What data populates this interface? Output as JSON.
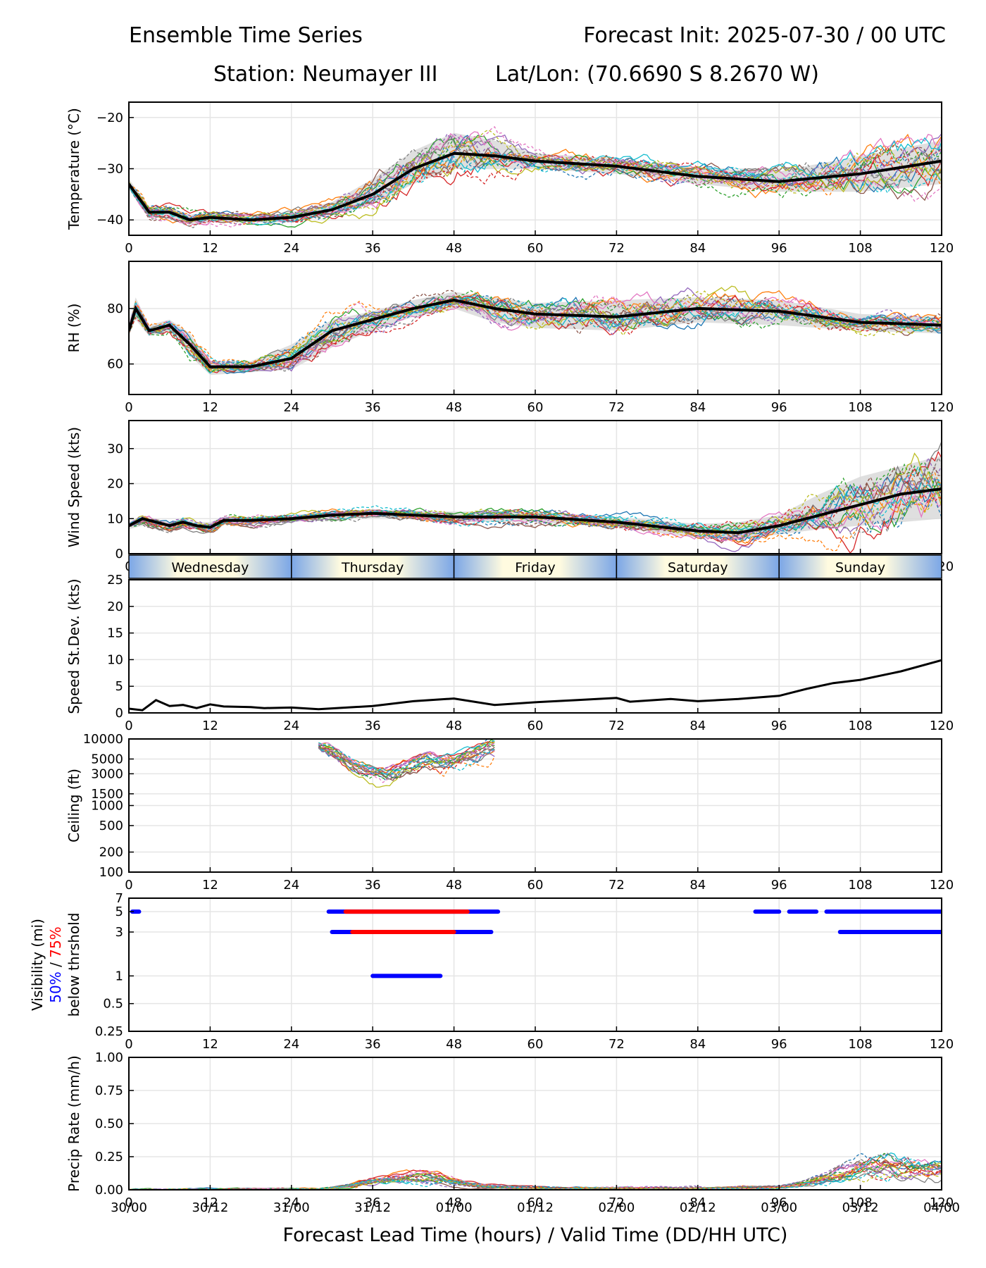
{
  "header": {
    "title": "Ensemble Time Series",
    "init": "Forecast Init: 2025-07-30 / 00 UTC",
    "station": "Station: Neumayer III",
    "latlon": "Lat/Lon: (70.6690 S 8.2670 W)"
  },
  "colors": {
    "accent_mean": "#000000",
    "spread_fill": "#d9d9d9",
    "prob50": "#0000ff",
    "prob75": "#ff0000",
    "grid": "#e5e5e5",
    "day_shade": "#fffbe0",
    "night_shade": "#7ba6e6",
    "members": [
      "#1f77b4",
      "#ff7f0e",
      "#2ca02c",
      "#d62728",
      "#9467bd",
      "#8c564b",
      "#e377c2",
      "#7f7f7f",
      "#bcbd22",
      "#17becf"
    ]
  },
  "x_axis": {
    "lead_ticks": [
      0,
      12,
      24,
      36,
      48,
      60,
      72,
      84,
      96,
      108,
      120
    ],
    "valid_ticks": [
      "30/00",
      "30/12",
      "31/00",
      "31/12",
      "01/00",
      "01/12",
      "02/00",
      "02/12",
      "03/00",
      "03/12",
      "04/00"
    ],
    "xlabel": "Forecast Lead Time (hours) / Valid Time (DD/HH UTC)"
  },
  "day_strip": [
    "Wednesday",
    "Thursday",
    "Friday",
    "Saturday",
    "Sunday"
  ],
  "chart_data": [
    {
      "type": "line",
      "name": "temperature",
      "ylabel": "Temperature (°C)",
      "ylim": [
        -43,
        -17
      ],
      "yticks": [
        -40,
        -30,
        -20
      ],
      "ytick_labels": [
        "−40",
        "−30",
        "−20"
      ],
      "x": [
        0,
        3,
        6,
        9,
        12,
        18,
        24,
        30,
        36,
        42,
        48,
        54,
        60,
        72,
        84,
        96,
        108,
        120
      ],
      "mean": [
        -33,
        -38.5,
        -38.5,
        -40,
        -39.5,
        -40,
        -39.5,
        -38,
        -35,
        -30,
        -27,
        -27.5,
        -28.5,
        -29.5,
        -31.5,
        -32.5,
        -31,
        -28.5
      ],
      "spread_lo": [
        -34,
        -39.5,
        -39.5,
        -41,
        -40.5,
        -40.5,
        -40.5,
        -39,
        -37,
        -33,
        -30,
        -30,
        -30,
        -31,
        -33,
        -34.5,
        -34.5,
        -33
      ],
      "spread_hi": [
        -32,
        -37.5,
        -37.5,
        -39,
        -38.5,
        -39.5,
        -38.5,
        -36.5,
        -32,
        -26.5,
        -23,
        -24.5,
        -27,
        -28,
        -30,
        -30.5,
        -27.5,
        -24.5
      ],
      "grid": true
    },
    {
      "type": "line",
      "name": "rh",
      "ylabel": "RH (%)",
      "ylim": [
        49,
        97
      ],
      "yticks": [
        60,
        80
      ],
      "ytick_labels": [
        "60",
        "80"
      ],
      "x": [
        0,
        1,
        3,
        6,
        9,
        12,
        18,
        24,
        30,
        36,
        42,
        48,
        54,
        60,
        72,
        84,
        96,
        108,
        120
      ],
      "mean": [
        72,
        80,
        72,
        74,
        67,
        59,
        59,
        62,
        72,
        76,
        80,
        83,
        80,
        78,
        77,
        80,
        79,
        75,
        74
      ],
      "spread_lo": [
        70,
        76,
        70,
        72,
        63,
        56,
        57,
        58,
        66,
        72,
        77,
        80,
        75,
        73,
        72,
        75,
        74,
        72,
        71
      ],
      "spread_hi": [
        75,
        84,
        74,
        76,
        71,
        61,
        61,
        67,
        76,
        79,
        83,
        86,
        84,
        82,
        83,
        84,
        83,
        78,
        77
      ],
      "grid": true
    },
    {
      "type": "line",
      "name": "wind_speed",
      "ylabel": "Wind Speed (kts)",
      "ylim": [
        0,
        38
      ],
      "yticks": [
        0,
        10,
        20,
        30
      ],
      "ytick_labels": [
        "0",
        "10",
        "20",
        "30"
      ],
      "x": [
        0,
        2,
        4,
        6,
        8,
        10,
        12,
        14,
        18,
        24,
        30,
        36,
        48,
        60,
        72,
        84,
        90,
        96,
        102,
        108,
        114,
        120
      ],
      "mean": [
        8,
        10,
        9,
        8,
        9,
        8,
        7.5,
        9.5,
        9.5,
        10,
        11,
        11.5,
        10.5,
        10.5,
        9,
        6.5,
        6,
        8,
        11,
        14,
        17,
        18.5
      ],
      "spread_lo": [
        7,
        8,
        7,
        7,
        7.5,
        7,
        6.5,
        8.5,
        8.5,
        9,
        10,
        10.5,
        9,
        9,
        7.5,
        4.5,
        4,
        5.5,
        7,
        8,
        9,
        10
      ],
      "spread_hi": [
        9,
        11,
        10,
        9,
        10,
        9,
        9,
        10.5,
        10.5,
        11,
        12,
        12.5,
        12,
        12,
        10.5,
        8.5,
        9,
        11,
        17,
        22,
        25,
        28
      ],
      "grid": true
    },
    {
      "type": "line",
      "name": "speed_stdev",
      "ylabel": "Speed St.Dev. (kts)",
      "ylim": [
        0,
        25
      ],
      "yticks": [
        0,
        5,
        10,
        15,
        20,
        25
      ],
      "ytick_labels": [
        "0",
        "5",
        "10",
        "15",
        "20",
        "25"
      ],
      "x": [
        0,
        2,
        4,
        6,
        8,
        10,
        12,
        14,
        18,
        20,
        24,
        28,
        36,
        42,
        48,
        54,
        60,
        66,
        72,
        74,
        80,
        84,
        90,
        96,
        100,
        104,
        108,
        114,
        120
      ],
      "values": [
        0.8,
        0.5,
        2.4,
        1.3,
        1.5,
        0.9,
        1.6,
        1.2,
        1.1,
        0.9,
        1.0,
        0.7,
        1.3,
        2.2,
        2.7,
        1.5,
        2.0,
        2.4,
        2.8,
        2.1,
        2.6,
        2.2,
        2.6,
        3.2,
        4.5,
        5.6,
        6.2,
        7.8,
        9.9
      ],
      "grid": true
    },
    {
      "type": "line",
      "name": "ceiling",
      "ylabel": "Ceiling (ft)",
      "log_scale": true,
      "ylim": [
        100,
        10000
      ],
      "yticks": [
        100,
        200,
        500,
        1000,
        1500,
        3000,
        5000,
        10000
      ],
      "ytick_labels": [
        "100",
        "200",
        "500",
        "1000",
        "1500",
        "3000",
        "5000",
        "10000"
      ],
      "x": [
        28,
        30,
        32,
        34,
        36,
        38,
        40,
        42,
        44,
        46,
        48,
        50,
        52,
        54
      ],
      "mean": [
        8000,
        6500,
        4500,
        3600,
        3200,
        3000,
        3400,
        4200,
        4800,
        4300,
        4600,
        5500,
        6500,
        8000
      ],
      "grid": true
    },
    {
      "type": "line",
      "name": "visibility",
      "ylabel": "Visibility (mi)",
      "ylabel2_blue": "50%",
      "ylabel2_sep": " / ",
      "ylabel2_red": "75%",
      "ylabel3": "below thrshold",
      "log_scale": true,
      "ylim": [
        0.25,
        7
      ],
      "yticks": [
        0.25,
        0.5,
        1,
        3,
        5,
        7
      ],
      "ytick_labels": [
        "0.25",
        "0.5",
        "1",
        "3",
        "5",
        "7"
      ],
      "prob_bars": [
        {
          "level": 5,
          "x0": 0.5,
          "x1": 1.5,
          "color": "blue"
        },
        {
          "level": 5,
          "x0": 29.5,
          "x1": 54.5,
          "color": "blue"
        },
        {
          "level": 5,
          "x0": 32,
          "x1": 50,
          "color": "red"
        },
        {
          "level": 3,
          "x0": 30,
          "x1": 53.5,
          "color": "blue"
        },
        {
          "level": 3,
          "x0": 33,
          "x1": 48,
          "color": "red"
        },
        {
          "level": 1,
          "x0": 36,
          "x1": 46,
          "color": "blue"
        },
        {
          "level": 5,
          "x0": 92.5,
          "x1": 96,
          "color": "blue"
        },
        {
          "level": 5,
          "x0": 97.5,
          "x1": 101.5,
          "color": "blue"
        },
        {
          "level": 5,
          "x0": 103,
          "x1": 120,
          "color": "blue"
        },
        {
          "level": 3,
          "x0": 105,
          "x1": 120,
          "color": "blue"
        }
      ],
      "grid": true
    },
    {
      "type": "line",
      "name": "precip_rate",
      "ylabel": "Precip Rate (mm/h)",
      "ylim": [
        0,
        1
      ],
      "yticks": [
        0,
        0.25,
        0.5,
        0.75,
        1
      ],
      "ytick_labels": [
        "0.00",
        "0.25",
        "0.50",
        "0.75",
        "1.00"
      ],
      "x": [
        0,
        28,
        32,
        36,
        40,
        44,
        48,
        52,
        60,
        72,
        84,
        96,
        100,
        104,
        108,
        112,
        116,
        120
      ],
      "mean": [
        0,
        0,
        0.03,
        0.07,
        0.09,
        0.1,
        0.07,
        0.03,
        0.01,
        0.01,
        0.01,
        0.02,
        0.05,
        0.1,
        0.18,
        0.2,
        0.17,
        0.16
      ],
      "grid": true
    }
  ]
}
